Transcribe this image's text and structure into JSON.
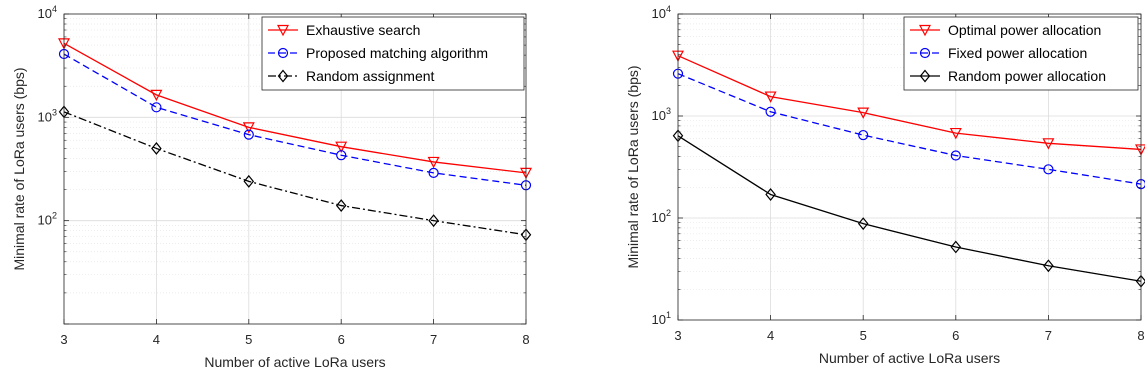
{
  "chart_data": [
    {
      "type": "line",
      "xlabel": "Number of active LoRa users",
      "ylabel": "Minimal rate of LoRa users (bps)",
      "x": [
        3,
        4,
        5,
        6,
        7,
        8
      ],
      "xlim": [
        3,
        8
      ],
      "ylim": [
        10,
        10000
      ],
      "yscale": "log",
      "grid": true,
      "legend_position": "top-right",
      "x_ticks": [
        "3",
        "4",
        "5",
        "6",
        "7",
        "8"
      ],
      "y_ticks": [
        {
          "base": "10",
          "exp": "2"
        },
        {
          "base": "10",
          "exp": "3"
        },
        {
          "base": "10",
          "exp": "4"
        }
      ],
      "series": [
        {
          "name": "Exhaustive search",
          "color": "#ff0000",
          "marker": "triangle-down",
          "dash": "solid",
          "values": [
            5200,
            1650,
            800,
            520,
            370,
            290
          ]
        },
        {
          "name": "Proposed matching algorithm",
          "color": "#0000ff",
          "marker": "circle",
          "dash": "dashed",
          "values": [
            4100,
            1250,
            680,
            430,
            290,
            220
          ]
        },
        {
          "name": "Random assignment",
          "color": "#000000",
          "marker": "diamond",
          "dash": "dashdot",
          "values": [
            1130,
            500,
            240,
            140,
            100,
            73
          ]
        }
      ]
    },
    {
      "type": "line",
      "xlabel": "Number of active LoRa users",
      "ylabel": "Minimal rate of LoRa users (bps)",
      "x": [
        3,
        4,
        5,
        6,
        7,
        8
      ],
      "xlim": [
        3,
        8
      ],
      "ylim": [
        10,
        10000
      ],
      "yscale": "log",
      "grid": true,
      "legend_position": "top-right",
      "x_ticks": [
        "3",
        "4",
        "5",
        "6",
        "7",
        "8"
      ],
      "y_ticks": [
        {
          "base": "10",
          "exp": "1"
        },
        {
          "base": "10",
          "exp": "2"
        },
        {
          "base": "10",
          "exp": "3"
        },
        {
          "base": "10",
          "exp": "4"
        }
      ],
      "series": [
        {
          "name": "Optimal power allocation",
          "color": "#ff0000",
          "marker": "triangle-down",
          "dash": "solid",
          "values": [
            3900,
            1550,
            1080,
            680,
            540,
            470
          ]
        },
        {
          "name": "Fixed power allocation",
          "color": "#0000ff",
          "marker": "circle",
          "dash": "dashed",
          "values": [
            2600,
            1100,
            650,
            410,
            300,
            215
          ]
        },
        {
          "name": "Random power allocation",
          "color": "#000000",
          "marker": "diamond",
          "dash": "solid",
          "values": [
            640,
            170,
            88,
            52,
            34,
            24
          ]
        }
      ]
    }
  ]
}
